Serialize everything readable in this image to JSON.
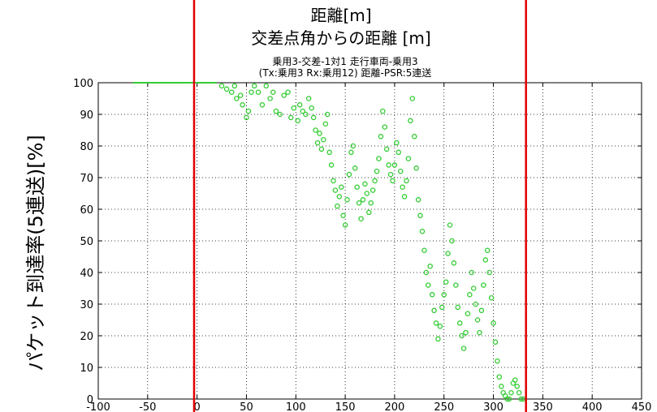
{
  "annotations": {
    "top_axis_label": "距離[m]",
    "heading": "交差点角からの距離 [m]",
    "ylabel": "パケット到達率(5連送)[%]"
  },
  "chart_data": {
    "type": "scatter",
    "title_line1": "乗用3-交差-1対1 走行車両-乗用3",
    "title_line2": "(Tx:乗用3 Rx:乗用12) 距離-PSR:5連送",
    "xlim": [
      -100,
      450
    ],
    "ylim": [
      0,
      100
    ],
    "xticks": [
      -100,
      -50,
      0,
      50,
      100,
      150,
      200,
      250,
      300,
      350,
      400,
      450
    ],
    "yticks": [
      0,
      10,
      20,
      30,
      40,
      50,
      60,
      70,
      80,
      90,
      100
    ],
    "grid": true,
    "series_color": "#33cc33",
    "marker_lines_color": "#e00000",
    "marker_lines_x": [
      -3,
      333
    ],
    "points": [
      [
        -65,
        100
      ],
      [
        -50,
        100
      ],
      [
        -35,
        100
      ],
      [
        -20,
        100
      ],
      [
        -5,
        100
      ],
      [
        10,
        100
      ],
      [
        20,
        100
      ],
      [
        25,
        99
      ],
      [
        30,
        98
      ],
      [
        35,
        97
      ],
      [
        38,
        99
      ],
      [
        40,
        95
      ],
      [
        44,
        96
      ],
      [
        46,
        93
      ],
      [
        50,
        89
      ],
      [
        52,
        91
      ],
      [
        55,
        97
      ],
      [
        58,
        99
      ],
      [
        62,
        97
      ],
      [
        66,
        93
      ],
      [
        70,
        99
      ],
      [
        74,
        95
      ],
      [
        77,
        97
      ],
      [
        80,
        91
      ],
      [
        84,
        90
      ],
      [
        88,
        96
      ],
      [
        92,
        97
      ],
      [
        95,
        89
      ],
      [
        98,
        92
      ],
      [
        102,
        88
      ],
      [
        104,
        93
      ],
      [
        107,
        91
      ],
      [
        110,
        90
      ],
      [
        113,
        95
      ],
      [
        116,
        92
      ],
      [
        118,
        89
      ],
      [
        120,
        85
      ],
      [
        122,
        81
      ],
      [
        124,
        84
      ],
      [
        126,
        79
      ],
      [
        128,
        82
      ],
      [
        130,
        87
      ],
      [
        132,
        90
      ],
      [
        134,
        78
      ],
      [
        136,
        74
      ],
      [
        138,
        69
      ],
      [
        140,
        66
      ],
      [
        142,
        61
      ],
      [
        144,
        64
      ],
      [
        146,
        67
      ],
      [
        148,
        58
      ],
      [
        150,
        55
      ],
      [
        152,
        63
      ],
      [
        154,
        71
      ],
      [
        156,
        78
      ],
      [
        158,
        80
      ],
      [
        160,
        73
      ],
      [
        162,
        67
      ],
      [
        164,
        62
      ],
      [
        166,
        57
      ],
      [
        168,
        63
      ],
      [
        170,
        68
      ],
      [
        172,
        65
      ],
      [
        174,
        59
      ],
      [
        176,
        62
      ],
      [
        178,
        66
      ],
      [
        180,
        69
      ],
      [
        182,
        72
      ],
      [
        184,
        76
      ],
      [
        186,
        83
      ],
      [
        188,
        91
      ],
      [
        190,
        86
      ],
      [
        192,
        79
      ],
      [
        194,
        74
      ],
      [
        196,
        71
      ],
      [
        198,
        69
      ],
      [
        200,
        74
      ],
      [
        202,
        81
      ],
      [
        204,
        78
      ],
      [
        206,
        72
      ],
      [
        208,
        67
      ],
      [
        210,
        64
      ],
      [
        212,
        69
      ],
      [
        214,
        76
      ],
      [
        216,
        88
      ],
      [
        218,
        95
      ],
      [
        220,
        83
      ],
      [
        222,
        73
      ],
      [
        224,
        63
      ],
      [
        226,
        58
      ],
      [
        228,
        53
      ],
      [
        230,
        47
      ],
      [
        232,
        40
      ],
      [
        234,
        36
      ],
      [
        236,
        42
      ],
      [
        238,
        33
      ],
      [
        240,
        28
      ],
      [
        242,
        24
      ],
      [
        244,
        19
      ],
      [
        246,
        23
      ],
      [
        248,
        29
      ],
      [
        250,
        33
      ],
      [
        252,
        37
      ],
      [
        254,
        46
      ],
      [
        256,
        55
      ],
      [
        258,
        50
      ],
      [
        260,
        43
      ],
      [
        262,
        36
      ],
      [
        264,
        29
      ],
      [
        266,
        24
      ],
      [
        268,
        20
      ],
      [
        270,
        16
      ],
      [
        272,
        21
      ],
      [
        274,
        27
      ],
      [
        276,
        33
      ],
      [
        278,
        40
      ],
      [
        280,
        35
      ],
      [
        282,
        30
      ],
      [
        284,
        25
      ],
      [
        286,
        21
      ],
      [
        288,
        28
      ],
      [
        290,
        36
      ],
      [
        292,
        44
      ],
      [
        294,
        47
      ],
      [
        296,
        40
      ],
      [
        298,
        32
      ],
      [
        300,
        24
      ],
      [
        302,
        18
      ],
      [
        304,
        12
      ],
      [
        306,
        7
      ],
      [
        308,
        4
      ],
      [
        310,
        2
      ],
      [
        312,
        1
      ],
      [
        314,
        0
      ],
      [
        316,
        0
      ],
      [
        318,
        2
      ],
      [
        320,
        5
      ],
      [
        322,
        6
      ],
      [
        324,
        4
      ],
      [
        326,
        2
      ],
      [
        328,
        0
      ],
      [
        330,
        0
      ]
    ]
  }
}
